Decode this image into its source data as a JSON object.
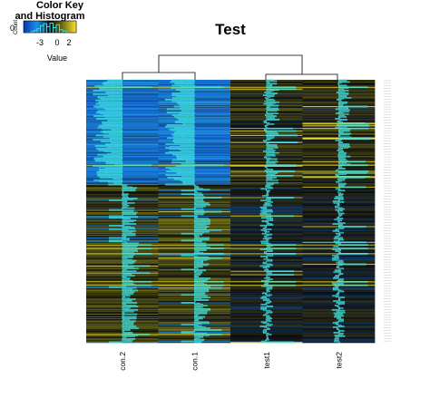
{
  "color_key": {
    "title_line1": "Color Key",
    "title_line2": "and Histogram",
    "y_label": "Count",
    "y_tick": "0",
    "x_ticks": [
      "-3",
      "0",
      "2"
    ],
    "x_label": "Value"
  },
  "chart_data": {
    "type": "heatmap",
    "title": "Test",
    "columns": [
      "con.2",
      "con.1",
      "test1",
      "test2"
    ],
    "column_dendrogram": "two clusters: (con.2, con.1) and (test1, test2)",
    "row_dendrogram": "hidden",
    "value_range": [
      -3,
      2
    ],
    "color_scale": [
      "#0a3cb4",
      "#1d8fe6",
      "#0a0a14",
      "#6e6e10",
      "#f0dc2a"
    ],
    "trace": "column",
    "trace_color": "#3ee0e0",
    "row_count": 300
  }
}
